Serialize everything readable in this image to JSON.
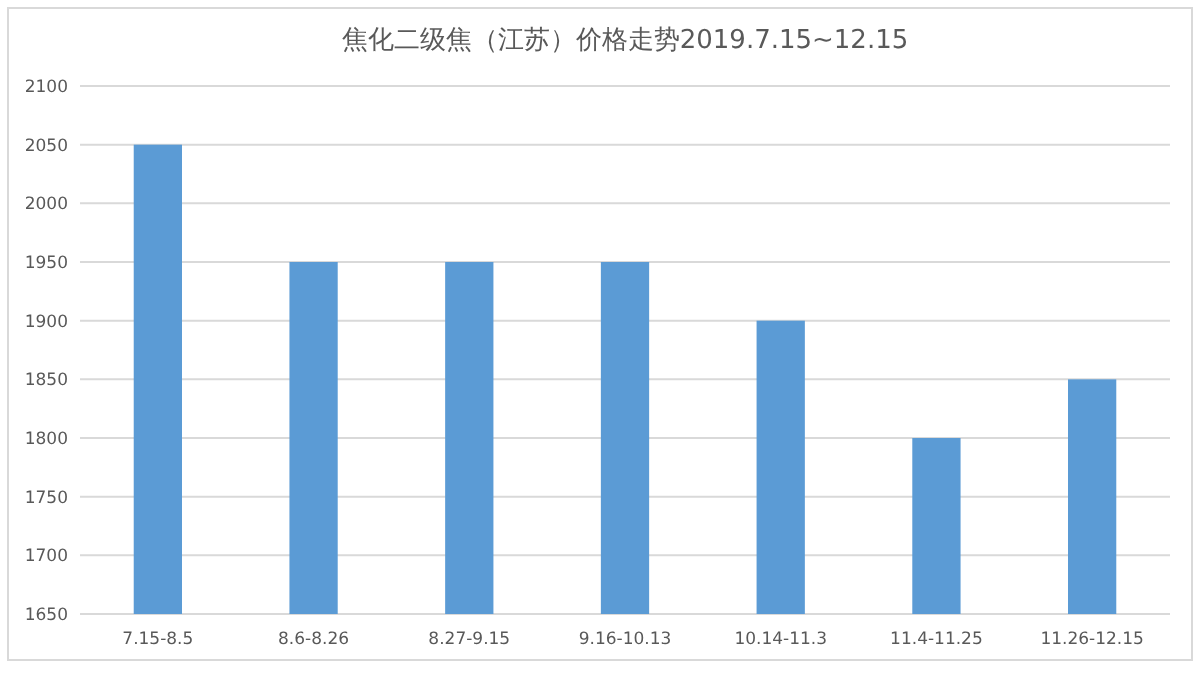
{
  "chart_data": {
    "type": "bar",
    "title": "焦化二级焦（江苏）价格走势2019.7.15~12.15",
    "categories": [
      "7.15-8.5",
      "8.6-8.26",
      "8.27-9.15",
      "9.16-10.13",
      "10.14-11.3",
      "11.4-11.25",
      "11.26-12.15"
    ],
    "values": [
      2050,
      1950,
      1950,
      1950,
      1900,
      1800,
      1850
    ],
    "color": "#5b9bd5",
    "ylim": [
      1650,
      2100
    ],
    "yticks": [
      1650,
      1700,
      1750,
      1800,
      1850,
      1900,
      1950,
      2000,
      2050,
      2100
    ],
    "grid": "y"
  }
}
